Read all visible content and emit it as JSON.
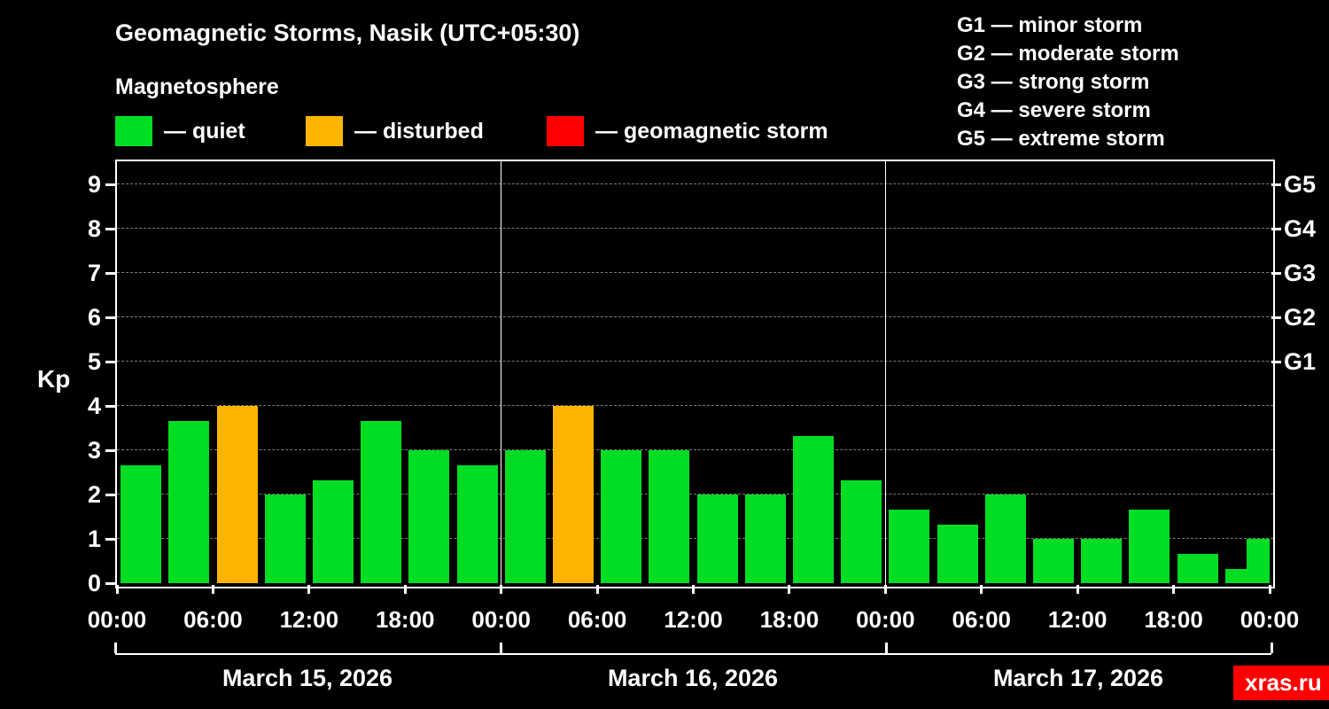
{
  "header": {
    "title": "Geomagnetic Storms, Nasik (UTC+05:30)",
    "subtitle": "Magnetosphere"
  },
  "legend": {
    "items": [
      {
        "label": "— quiet",
        "color_key": "quiet"
      },
      {
        "label": "— disturbed",
        "color_key": "disturbed"
      },
      {
        "label": "— geomagnetic storm",
        "color_key": "storm"
      }
    ]
  },
  "g_scale_legend": {
    "lines": [
      "G1 — minor storm",
      "G2 — moderate storm",
      "G3 — strong storm",
      "G4 — severe storm",
      "G5 — extreme storm"
    ]
  },
  "colors": {
    "quiet": "#00dd22",
    "disturbed": "#ffb400",
    "storm": "#ff0000",
    "background": "#000000",
    "text": "#ffffff",
    "grid": "#7a7a7a"
  },
  "watermark": {
    "label": "xras.ru",
    "background": "#ff0000"
  },
  "chart_data": {
    "type": "bar",
    "title": "Geomagnetic Storms, Nasik (UTC+05:30)",
    "subtitle": "Magnetosphere",
    "ylabel": "Kp",
    "ylim": [
      0,
      9.6
    ],
    "yticks": [
      0,
      1,
      2,
      3,
      4,
      5,
      6,
      7,
      8,
      9
    ],
    "right_axis": [
      {
        "value": 5,
        "label": "G1"
      },
      {
        "value": 6,
        "label": "G2"
      },
      {
        "value": 7,
        "label": "G3"
      },
      {
        "value": 8,
        "label": "G4"
      },
      {
        "value": 9,
        "label": "G5"
      }
    ],
    "x_tick_labels": [
      "00:00",
      "06:00",
      "12:00",
      "18:00",
      "00:00",
      "06:00",
      "12:00",
      "18:00",
      "00:00",
      "06:00",
      "12:00",
      "18:00",
      "00:00"
    ],
    "grid": "dashed-horizontal",
    "legend_position": "top",
    "days": [
      {
        "date": "March 15, 2026",
        "bars": [
          {
            "kp": 2.67,
            "status": "quiet"
          },
          {
            "kp": 3.67,
            "status": "quiet"
          },
          {
            "kp": 4.0,
            "status": "disturbed"
          },
          {
            "kp": 2.0,
            "status": "quiet"
          },
          {
            "kp": 2.33,
            "status": "quiet"
          },
          {
            "kp": 3.67,
            "status": "quiet"
          },
          {
            "kp": 3.0,
            "status": "quiet"
          },
          {
            "kp": 2.67,
            "status": "quiet"
          }
        ]
      },
      {
        "date": "March 16, 2026",
        "bars": [
          {
            "kp": 3.0,
            "status": "quiet"
          },
          {
            "kp": 4.0,
            "status": "disturbed"
          },
          {
            "kp": 3.0,
            "status": "quiet"
          },
          {
            "kp": 3.0,
            "status": "quiet"
          },
          {
            "kp": 2.0,
            "status": "quiet"
          },
          {
            "kp": 2.0,
            "status": "quiet"
          },
          {
            "kp": 3.33,
            "status": "quiet"
          },
          {
            "kp": 2.33,
            "status": "quiet"
          }
        ]
      },
      {
        "date": "March 17, 2026",
        "bars": [
          {
            "kp": 1.67,
            "status": "quiet"
          },
          {
            "kp": 1.33,
            "status": "quiet"
          },
          {
            "kp": 2.0,
            "status": "quiet"
          },
          {
            "kp": 1.0,
            "status": "quiet"
          },
          {
            "kp": 1.0,
            "status": "quiet"
          },
          {
            "kp": 1.67,
            "status": "quiet"
          },
          {
            "kp": 0.67,
            "status": "quiet"
          },
          {
            "kp": 0.33,
            "status": "quiet"
          }
        ]
      }
    ],
    "partial_next_bar": {
      "kp": 1.0,
      "status": "quiet"
    }
  }
}
